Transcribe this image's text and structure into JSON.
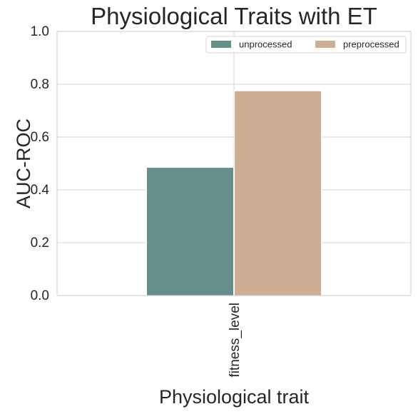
{
  "chart_data": {
    "type": "bar",
    "title": "Physiological Traits with ET",
    "xlabel": "Physiological trait",
    "ylabel": "AUC-ROC",
    "categories": [
      "fitness_level"
    ],
    "series": [
      {
        "name": "unprocessed",
        "values": [
          0.485
        ],
        "color": "#668f8a"
      },
      {
        "name": "preprocessed",
        "values": [
          0.775
        ],
        "color": "#ceae92"
      }
    ],
    "ylim": [
      0,
      1.0
    ],
    "yticks": [
      0.0,
      0.2,
      0.4,
      0.6,
      0.8,
      1.0
    ],
    "ytick_labels": [
      "0.0",
      "0.2",
      "0.4",
      "0.6",
      "0.8",
      "1.0"
    ],
    "grid": true,
    "legend_position": "top-right",
    "legend_columns": 2
  }
}
